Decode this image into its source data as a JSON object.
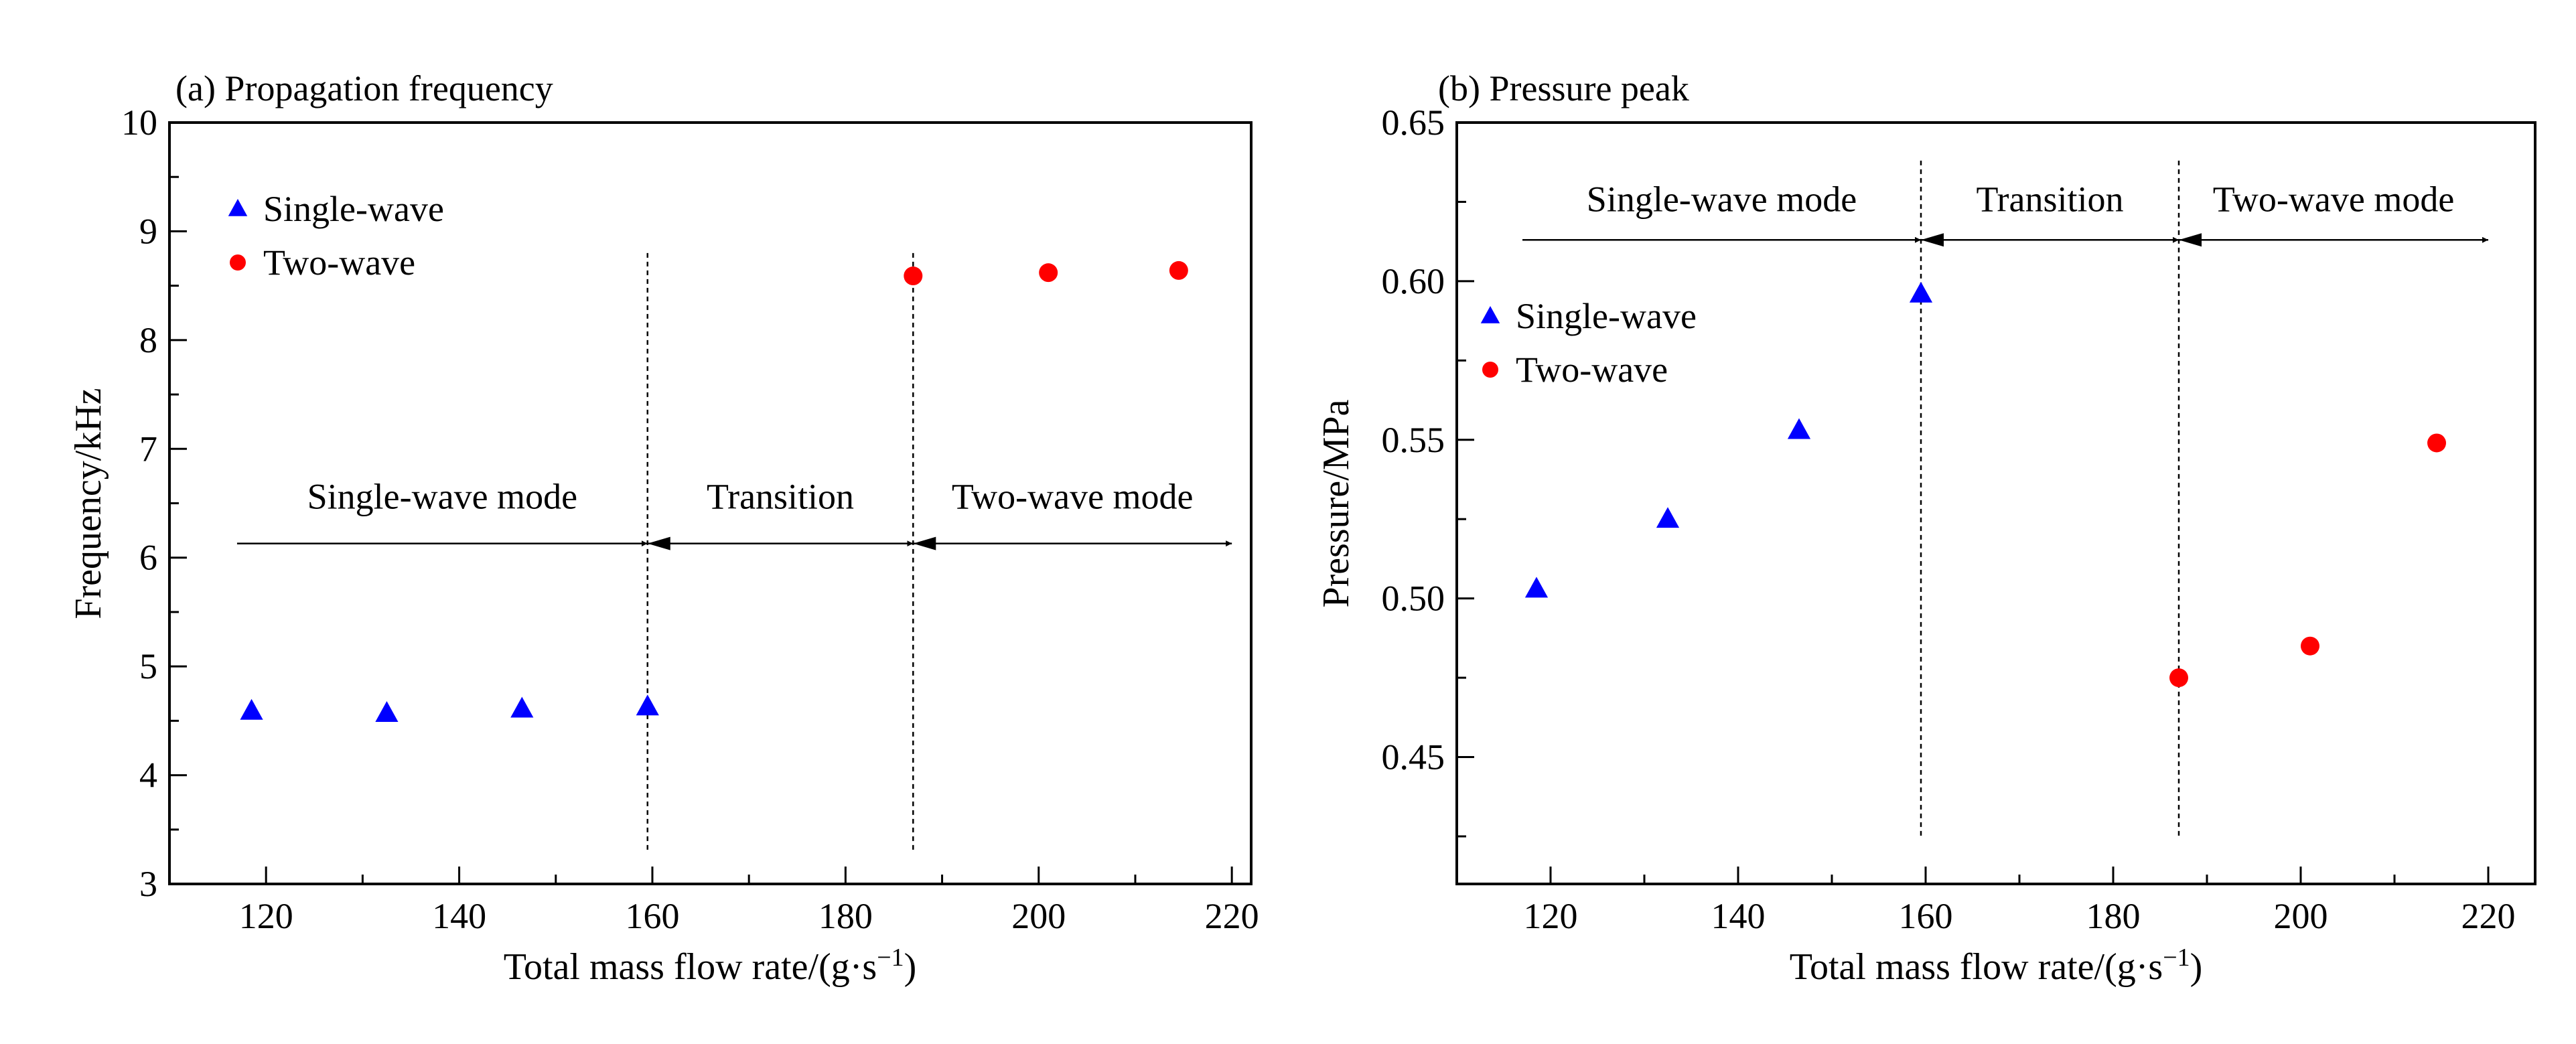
{
  "chart_data": [
    {
      "type": "scatter",
      "title": "(a) Propagation frequency",
      "xlabel_main": "Total mass flow rate/(g·s",
      "xlabel_sup": "−1",
      "xlabel_close": ")",
      "ylabel": "Frequency/kHz",
      "xlim": [
        110,
        222
      ],
      "ylim": [
        3,
        10
      ],
      "xticks": [
        120,
        140,
        160,
        180,
        200,
        220
      ],
      "yticks": [
        3,
        4,
        5,
        6,
        7,
        8,
        9,
        10
      ],
      "grid": false,
      "legend_position": "top-left",
      "series": [
        {
          "name": "Single-wave",
          "marker": "triangle",
          "color": "#0000ff",
          "x": [
            118.5,
            132.5,
            146.5,
            159.5
          ],
          "y": [
            4.59,
            4.57,
            4.61,
            4.63
          ]
        },
        {
          "name": "Two-wave",
          "marker": "circle",
          "color": "#ff0000",
          "x": [
            187.0,
            201.0,
            214.5
          ],
          "y": [
            8.59,
            8.62,
            8.64
          ]
        }
      ],
      "mode_regions": {
        "labels": [
          "Single-wave mode",
          "Transition",
          "Two-wave mode"
        ],
        "boundaries": [
          159.5,
          187.0
        ],
        "arrow_start": 117,
        "arrow_end": 220,
        "arrow_level": 6.13,
        "label_level": 6.45,
        "divider_range": [
          3.3,
          8.8
        ]
      }
    },
    {
      "type": "scatter",
      "title": "(b) Pressure peak",
      "xlabel_main": "Total mass flow rate/(g·s",
      "xlabel_sup": "−1",
      "xlabel_close": ")",
      "ylabel": "Pressure/MPa",
      "xlim": [
        110,
        225
      ],
      "ylim": [
        0.41,
        0.65
      ],
      "xticks": [
        120,
        140,
        160,
        180,
        200,
        220
      ],
      "yticks": [
        0.45,
        0.5,
        0.55,
        0.6,
        0.65
      ],
      "ytick_labels": [
        "0.45",
        "0.50",
        "0.55",
        "0.60",
        "0.65"
      ],
      "grid": false,
      "legend_position": "upper-left, below mode arrows",
      "series": [
        {
          "name": "Single-wave",
          "marker": "triangle",
          "color": "#0000ff",
          "x": [
            118.5,
            132.5,
            146.5,
            159.5
          ],
          "y": [
            0.503,
            0.525,
            0.553,
            0.596
          ]
        },
        {
          "name": "Two-wave",
          "marker": "circle",
          "color": "#ff0000",
          "x": [
            187.0,
            201.0,
            214.5
          ],
          "y": [
            0.475,
            0.485,
            0.549
          ]
        }
      ],
      "mode_regions": {
        "labels": [
          "Single-wave mode",
          "Transition",
          "Two-wave mode"
        ],
        "boundaries": [
          159.5,
          187.0
        ],
        "arrow_start": 117,
        "arrow_end": 220,
        "arrow_level": 0.613,
        "label_level": 0.622,
        "divider_range": [
          0.425,
          0.638
        ]
      }
    }
  ]
}
